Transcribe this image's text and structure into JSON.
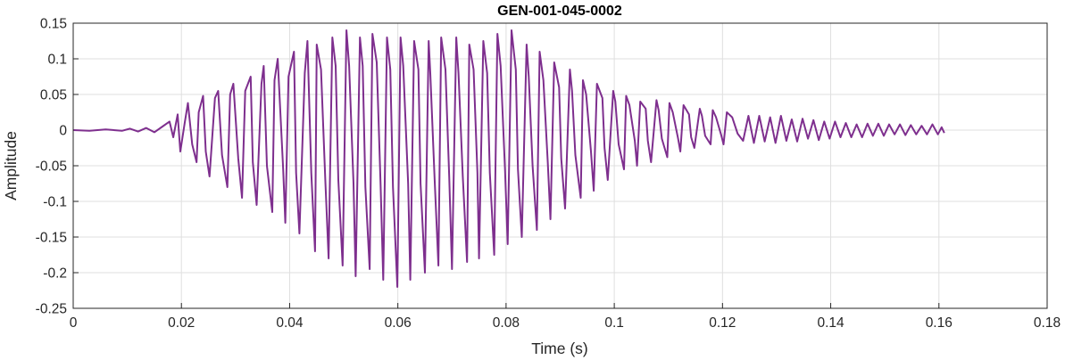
{
  "chart_data": {
    "type": "line",
    "title": "GEN-001-045-0002",
    "xlabel": "Time (s)",
    "ylabel": "Amplitude",
    "xlim": [
      0,
      0.18
    ],
    "ylim": [
      -0.25,
      0.15
    ],
    "xticks": [
      0,
      0.02,
      0.04,
      0.06,
      0.08,
      0.1,
      0.12,
      0.14,
      0.16,
      0.18
    ],
    "xtick_labels": [
      "0",
      "0.02",
      "0.04",
      "0.06",
      "0.08",
      "0.1",
      "0.12",
      "0.14",
      "0.16",
      "0.18"
    ],
    "yticks": [
      0.15,
      0.1,
      0.05,
      0,
      -0.05,
      -0.1,
      -0.15,
      -0.2,
      -0.25
    ],
    "ytick_labels": [
      "0.15",
      "0.1",
      "0.05",
      "0",
      "-0.05",
      "-0.1",
      "-0.15",
      "-0.2",
      "-0.25"
    ],
    "grid": true,
    "colors": {
      "line": "#7e2f8e",
      "grid": "#dfdfdf",
      "axis": "#262626"
    },
    "series": [
      {
        "x": [
          0,
          0.003,
          0.006,
          0.009,
          0.0105,
          0.012,
          0.0135,
          0.015,
          0.0165,
          0.0178,
          0.0185,
          0.0193,
          0.0198,
          0.0206,
          0.0212,
          0.022,
          0.0228,
          0.0232,
          0.024,
          0.0245,
          0.0252,
          0.0262,
          0.0268,
          0.0275,
          0.0285,
          0.029,
          0.0296,
          0.0305,
          0.0312,
          0.0318,
          0.0328,
          0.0332,
          0.0339,
          0.0348,
          0.0352,
          0.0358,
          0.0368,
          0.0372,
          0.0378,
          0.0388,
          0.0392,
          0.0398,
          0.0408,
          0.0412,
          0.0418,
          0.0428,
          0.0433,
          0.044,
          0.0447,
          0.045,
          0.0458,
          0.0466,
          0.0472,
          0.0479,
          0.0485,
          0.049,
          0.0498,
          0.0505,
          0.051,
          0.0518,
          0.0522,
          0.053,
          0.0535,
          0.054,
          0.0548,
          0.0553,
          0.0561,
          0.0568,
          0.0573,
          0.058,
          0.0586,
          0.0591,
          0.0599,
          0.0605,
          0.061,
          0.0619,
          0.0623,
          0.063,
          0.0638,
          0.0642,
          0.065,
          0.0657,
          0.066,
          0.0668,
          0.0675,
          0.068,
          0.0688,
          0.0695,
          0.07,
          0.0708,
          0.0712,
          0.072,
          0.0728,
          0.0732,
          0.074,
          0.0747,
          0.075,
          0.0758,
          0.0765,
          0.077,
          0.0778,
          0.0784,
          0.079,
          0.0798,
          0.0803,
          0.081,
          0.0818,
          0.0822,
          0.0829,
          0.0838,
          0.0842,
          0.0849,
          0.0857,
          0.0862,
          0.0869,
          0.0877,
          0.0882,
          0.0889,
          0.0898,
          0.0902,
          0.0909,
          0.0918,
          0.0922,
          0.0928,
          0.0938,
          0.0942,
          0.0948,
          0.0957,
          0.0962,
          0.0968,
          0.0978,
          0.0982,
          0.0988,
          0.0998,
          0.1002,
          0.1008,
          0.1018,
          0.1022,
          0.1028,
          0.1038,
          0.1042,
          0.1048,
          0.1058,
          0.1062,
          0.1068,
          0.1078,
          0.1082,
          0.1088,
          0.1098,
          0.1102,
          0.1108,
          0.1118,
          0.1122,
          0.1128,
          0.1138,
          0.1142,
          0.1148,
          0.1158,
          0.1162,
          0.1168,
          0.1178,
          0.1182,
          0.1188,
          0.1198,
          0.1202,
          0.1208,
          0.1218,
          0.1228,
          0.1238,
          0.1248,
          0.1258,
          0.1268,
          0.1278,
          0.1288,
          0.1298,
          0.1308,
          0.1318,
          0.1328,
          0.1338,
          0.1348,
          0.1358,
          0.1368,
          0.1378,
          0.1388,
          0.1398,
          0.1408,
          0.1418,
          0.1428,
          0.1438,
          0.1448,
          0.1458,
          0.1468,
          0.1478,
          0.1488,
          0.1498,
          0.1508,
          0.1518,
          0.1528,
          0.1538,
          0.1548,
          0.1558,
          0.1568,
          0.1578,
          0.1588,
          0.1598,
          0.1605,
          0.161
        ],
        "y": [
          0,
          -0.001,
          0.001,
          -0.001,
          0.002,
          -0.002,
          0.003,
          -0.003,
          0.005,
          0.012,
          -0.01,
          0.022,
          -0.03,
          0.01,
          0.038,
          -0.02,
          -0.045,
          0.025,
          0.048,
          -0.03,
          -0.065,
          0.045,
          0.055,
          -0.035,
          -0.08,
          0.05,
          0.065,
          -0.04,
          -0.095,
          0.055,
          0.075,
          -0.045,
          -0.105,
          0.065,
          0.09,
          -0.05,
          -0.115,
          0.07,
          0.1,
          -0.055,
          -0.13,
          0.075,
          0.11,
          -0.06,
          -0.145,
          0.08,
          0.125,
          -0.06,
          -0.17,
          0.12,
          0.085,
          -0.07,
          -0.18,
          0.13,
          0.09,
          -0.07,
          -0.19,
          0.14,
          0.09,
          -0.075,
          -0.205,
          0.13,
          0.09,
          -0.08,
          -0.195,
          0.135,
          0.095,
          -0.075,
          -0.21,
          0.13,
          0.085,
          -0.08,
          -0.22,
          0.13,
          0.09,
          -0.075,
          -0.21,
          0.125,
          0.085,
          -0.075,
          -0.2,
          0.125,
          0.08,
          -0.07,
          -0.19,
          0.13,
          0.085,
          -0.065,
          -0.195,
          0.13,
          0.08,
          -0.065,
          -0.185,
          0.12,
          0.085,
          -0.06,
          -0.18,
          0.125,
          0.08,
          -0.06,
          -0.175,
          0.135,
          0.09,
          -0.055,
          -0.16,
          0.14,
          0.085,
          -0.055,
          -0.15,
          0.12,
          0.075,
          -0.05,
          -0.14,
          0.11,
          0.07,
          -0.045,
          -0.125,
          0.095,
          0.06,
          -0.04,
          -0.11,
          0.085,
          0.055,
          -0.035,
          -0.095,
          0.07,
          0.05,
          -0.03,
          -0.085,
          0.065,
          0.045,
          -0.025,
          -0.07,
          0.055,
          0.04,
          -0.02,
          -0.055,
          0.048,
          0.035,
          -0.015,
          -0.05,
          0.04,
          0.03,
          -0.015,
          -0.045,
          0.042,
          0.028,
          -0.012,
          -0.038,
          0.038,
          0.025,
          -0.012,
          -0.03,
          0.035,
          0.022,
          -0.01,
          -0.025,
          0.03,
          0.02,
          -0.008,
          -0.02,
          0.028,
          0.018,
          -0.008,
          -0.02,
          0.025,
          0.018,
          -0.005,
          -0.015,
          0.02,
          -0.018,
          0.02,
          -0.016,
          0.018,
          -0.018,
          0.02,
          -0.015,
          0.015,
          -0.016,
          0.016,
          -0.012,
          0.014,
          -0.014,
          0.012,
          -0.012,
          0.012,
          -0.01,
          0.01,
          -0.01,
          0.008,
          -0.01,
          0.009,
          -0.008,
          0.009,
          -0.008,
          0.008,
          -0.006,
          0.008,
          -0.007,
          0.007,
          -0.006,
          0.006,
          -0.006,
          0.008,
          -0.006,
          0.004,
          -0.004
        ]
      }
    ]
  }
}
